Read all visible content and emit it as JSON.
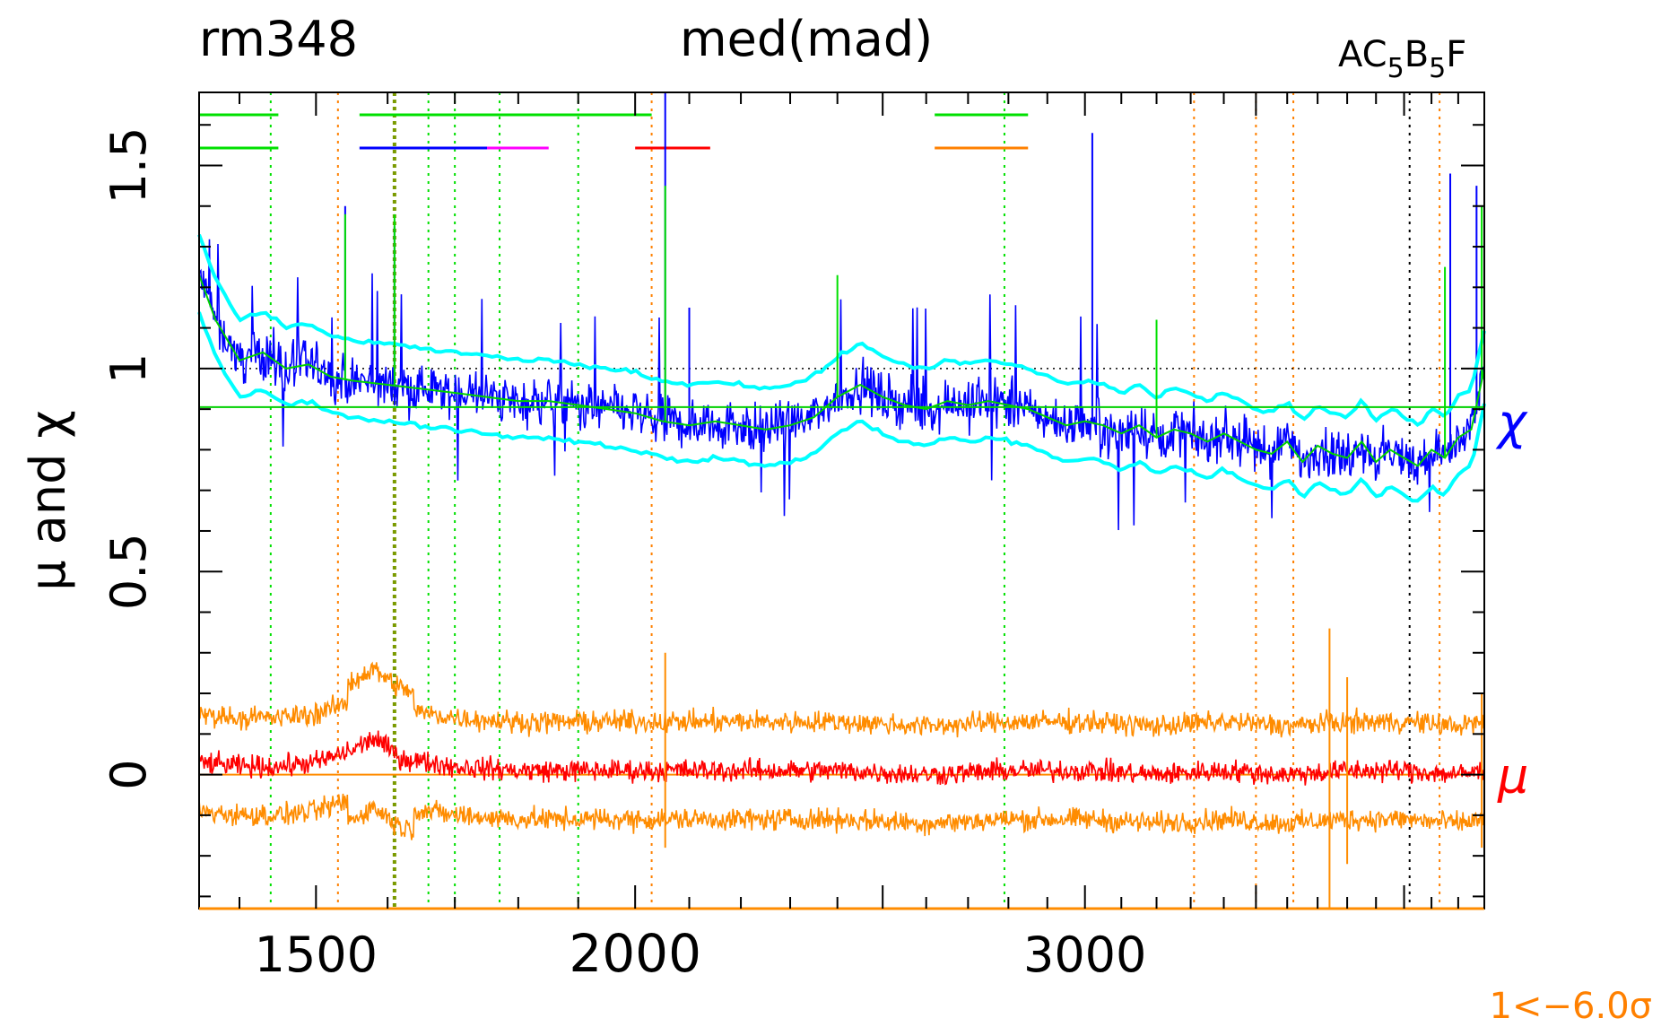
{
  "header": {
    "object_id": "rm348",
    "statistic": "med(mad)",
    "model_label_main": "AC",
    "model_label_sub1": "5",
    "model_label_mid": "B",
    "model_label_sub2": "5",
    "model_label_tail": "F"
  },
  "footer": {
    "clip_note": "1<−6.0σ"
  },
  "colors": {
    "chi": "#0000ff",
    "chi_band": "#00ffff",
    "chi_smooth": "#00d000",
    "mu": "#ff0000",
    "mu_band": "#ff8c00",
    "green_marker": "#00e000",
    "orange_marker": "#ff8000",
    "black_marker": "#000000",
    "magenta": "#ff00ff",
    "axes": "#000000"
  },
  "chart_data": {
    "type": "line",
    "title": "",
    "xlabel": "",
    "ylabel": "μ and χ",
    "x_scale": "log",
    "xlim": [
      1350,
      4300
    ],
    "ylim": [
      -0.33,
      1.68
    ],
    "x_tick_labels": [
      {
        "value": 1500,
        "label": "1500"
      },
      {
        "value": 2000,
        "label": "2000"
      },
      {
        "value": 3000,
        "label": "3000"
      }
    ],
    "y_tick_labels": [
      {
        "value": 0,
        "label": "0"
      },
      {
        "value": 0.5,
        "label": "0.5"
      },
      {
        "value": 1,
        "label": "1"
      },
      {
        "value": 1.5,
        "label": "1.5"
      }
    ],
    "reference_lines": {
      "chi_reference": 0.905,
      "unity": 1.0,
      "zero": 0.0
    },
    "series": [
      {
        "name": "χ",
        "role": "chi",
        "x": [
          1350,
          1370,
          1400,
          1430,
          1460,
          1490,
          1520,
          1550,
          1600,
          1650,
          1700,
          1750,
          1800,
          1850,
          1900,
          1950,
          2000,
          2050,
          2100,
          2150,
          2200,
          2250,
          2300,
          2350,
          2400,
          2450,
          2500,
          2550,
          2600,
          2650,
          2700,
          2750,
          2800,
          2850,
          2900,
          2950,
          3000,
          3050,
          3100,
          3150,
          3200,
          3250,
          3300,
          3350,
          3400,
          3450,
          3500,
          3550,
          3600,
          3650,
          3700,
          3750,
          3800,
          3850,
          3900,
          3950,
          4000,
          4050,
          4100,
          4150,
          4200,
          4250,
          4300
        ],
        "values": [
          1.23,
          1.12,
          1.02,
          1.04,
          1.0,
          1.01,
          0.98,
          0.97,
          0.96,
          0.95,
          0.94,
          0.93,
          0.92,
          0.92,
          0.91,
          0.9,
          0.89,
          0.87,
          0.86,
          0.87,
          0.86,
          0.85,
          0.86,
          0.88,
          0.93,
          0.96,
          0.93,
          0.91,
          0.9,
          0.92,
          0.91,
          0.92,
          0.91,
          0.9,
          0.88,
          0.86,
          0.87,
          0.86,
          0.84,
          0.86,
          0.83,
          0.85,
          0.84,
          0.82,
          0.84,
          0.82,
          0.8,
          0.79,
          0.82,
          0.77,
          0.81,
          0.79,
          0.78,
          0.82,
          0.77,
          0.8,
          0.78,
          0.76,
          0.8,
          0.78,
          0.83,
          0.85,
          1.0
        ]
      },
      {
        "name": "μ",
        "role": "mu",
        "x": [
          1350,
          1400,
          1450,
          1500,
          1550,
          1580,
          1620,
          1700,
          1800,
          1900,
          2000,
          2200,
          2400,
          2600,
          2800,
          3000,
          3200,
          3400,
          3600,
          3800,
          4000,
          4200,
          4300
        ],
        "values": [
          0.03,
          0.02,
          0.02,
          0.03,
          0.06,
          0.09,
          0.04,
          0.02,
          0.01,
          0.01,
          0.01,
          0.01,
          0.01,
          0.0,
          0.01,
          0.01,
          0.0,
          0.01,
          0.0,
          0.01,
          0.01,
          0.0,
          0.01
        ]
      }
    ],
    "vertical_markers": {
      "green": [
        1440,
        1660,
        1700,
        1770,
        1900,
        2790
      ],
      "orange": [
        1530,
        2030,
        3310,
        3500,
        3620,
        4130
      ],
      "black": [
        4020
      ],
      "green_bold": [
        1610
      ]
    },
    "top_segments": {
      "row1": [
        {
          "from": 1350,
          "to": 1450,
          "color": "green"
        },
        {
          "from": 1560,
          "to": 2030,
          "color": "green"
        },
        {
          "from": 2620,
          "to": 2850,
          "color": "green"
        }
      ],
      "row2": [
        {
          "from": 1350,
          "to": 1450,
          "color": "green"
        },
        {
          "from": 1560,
          "to": 1750,
          "color": "blue"
        },
        {
          "from": 1750,
          "to": 1850,
          "color": "magenta"
        },
        {
          "from": 2000,
          "to": 2140,
          "color": "red"
        },
        {
          "from": 2620,
          "to": 2850,
          "color": "orange"
        }
      ]
    }
  }
}
